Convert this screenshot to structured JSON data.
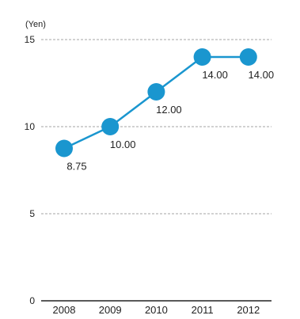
{
  "chart_data": {
    "type": "line",
    "unit_label": "(Yen)",
    "categories": [
      "2008",
      "2009",
      "2010",
      "2011",
      "2012"
    ],
    "series": [
      {
        "values": [
          8.75,
          10.0,
          12.0,
          14.0,
          14.0
        ],
        "labels": [
          "8.75",
          "10.00",
          "12.00",
          "14.00",
          "14.00"
        ],
        "color": "#1a96cf"
      }
    ],
    "ylim": [
      0,
      15
    ],
    "yticks": [
      0,
      5,
      10,
      15
    ],
    "grid": true,
    "grid_style": "dashed",
    "colors": {
      "line": "#1a96cf",
      "marker": "#1a96cf",
      "grid": "#888888",
      "axis": "#222222",
      "text": "#222222"
    }
  }
}
